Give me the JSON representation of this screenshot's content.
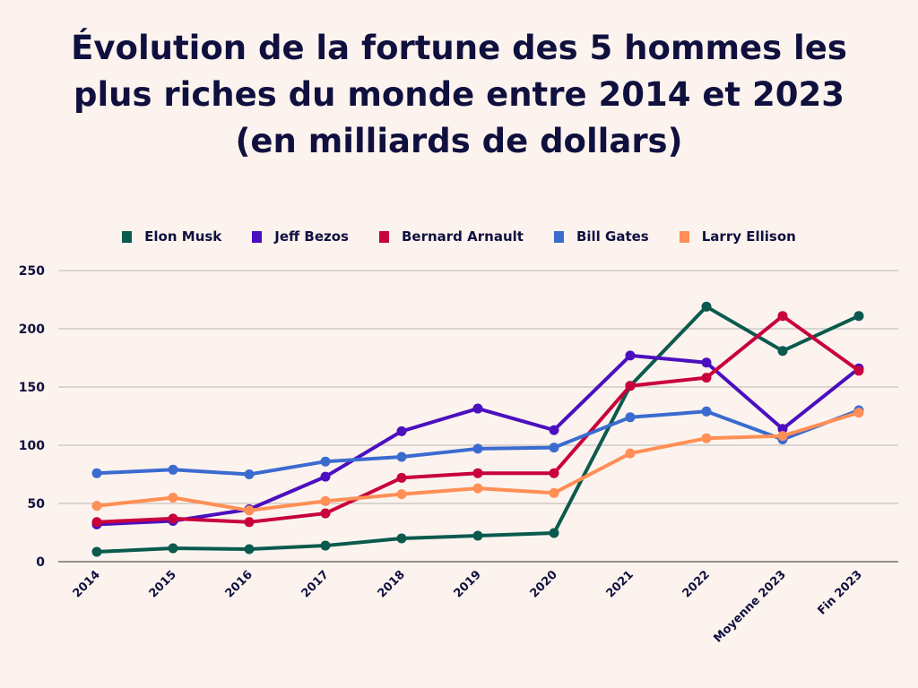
{
  "chart_data": {
    "type": "line",
    "title": [
      "Évolution de la fortune des 5 hommes les",
      "plus riches du monde entre 2014 et 2023",
      "(en milliards de dollars)"
    ],
    "xlabel": "",
    "ylabel": "",
    "ylim": [
      0,
      250
    ],
    "yticks": [
      "0",
      "50",
      "100",
      "150",
      "200",
      "250"
    ],
    "grid": true,
    "legend": "top",
    "categories": [
      "2014",
      "2015",
      "2016",
      "2017",
      "2018",
      "2019",
      "2020",
      "2021",
      "2022",
      "Moyenne 2023",
      "Fin 2023"
    ],
    "series": [
      {
        "name": "Elon Musk",
        "color": "#0b5a4e",
        "values": [
          8.5,
          11.5,
          10.8,
          13.8,
          20,
          22.3,
          24.6,
          151,
          219,
          181,
          211
        ]
      },
      {
        "name": "Jeff Bezos",
        "color": "#4b0fbf",
        "values": [
          32,
          35,
          45,
          73,
          112,
          131.5,
          113,
          177,
          171,
          114,
          166
        ]
      },
      {
        "name": "Bernard Arnault",
        "color": "#c8003c",
        "values": [
          34,
          37,
          34,
          41.5,
          72,
          76,
          76,
          151,
          158,
          211,
          164
        ]
      },
      {
        "name": "Bill Gates",
        "color": "#3b6bd0",
        "values": [
          76,
          79,
          75,
          86,
          90,
          97,
          98,
          124,
          129,
          105,
          130
        ]
      },
      {
        "name": "Larry Ellison",
        "color": "#ff8f55",
        "values": [
          48,
          55,
          44,
          52,
          58,
          63,
          59,
          93,
          106,
          108,
          128
        ]
      }
    ]
  }
}
